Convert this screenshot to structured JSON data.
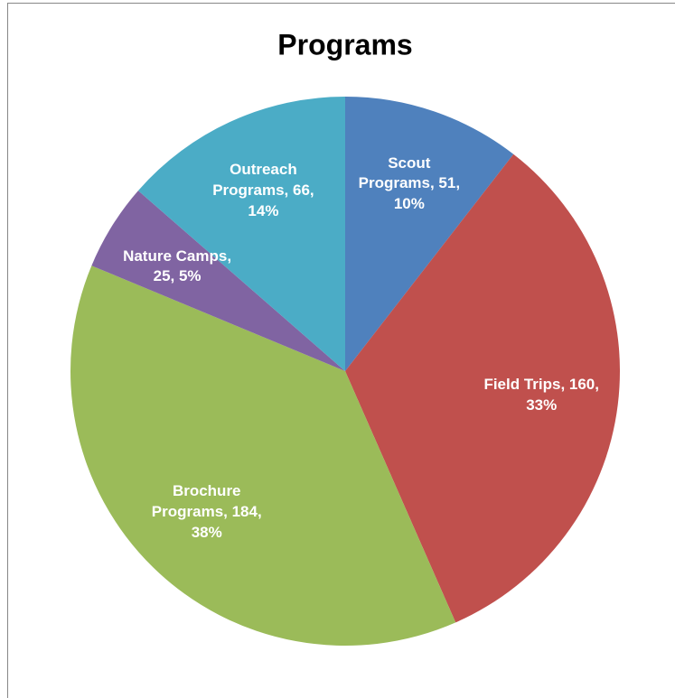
{
  "chart_data": {
    "type": "pie",
    "title": "Programs",
    "categories": [
      "Scout Programs",
      "Field Trips",
      "Brochure Programs",
      "Nature Camps",
      "Outreach Programs"
    ],
    "values": [
      51,
      160,
      184,
      25,
      66
    ],
    "value_labels": [
      "Scout Programs, 51, 10%",
      "Field Trips, 160, 33%",
      "Brochure Programs, 184, 38%",
      "Nature Camps, 25, 5%",
      "Outreach Programs, 66, 14%"
    ],
    "colors": [
      "#4f81bd",
      "#c0504d",
      "#9bbb59",
      "#8064a2",
      "#4bacc6"
    ]
  }
}
